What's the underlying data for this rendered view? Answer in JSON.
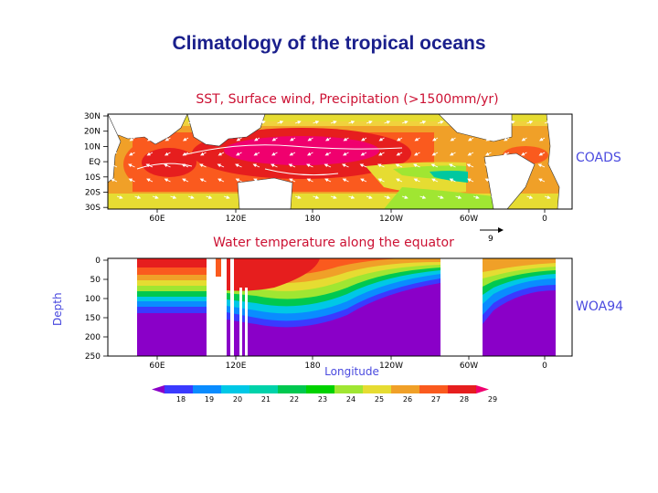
{
  "page": {
    "title": "Climatology of the tropical oceans"
  },
  "chart_data": [
    {
      "type": "heatmap",
      "title": "SST, Surface wind, Precipitation (>1500mm/yr)",
      "source_label": "COADS",
      "x_ticks": [
        "60E",
        "120E",
        "180",
        "120W",
        "60W",
        "0"
      ],
      "y_ticks": [
        "30N",
        "20N",
        "10N",
        "EQ",
        "10S",
        "20S",
        "30S"
      ],
      "overlay": "surface wind vectors and precipitation contours",
      "wind_reference_label": "9"
    },
    {
      "type": "heatmap",
      "title": "Water temperature along the equator",
      "source_label": "WOA94",
      "xlabel": "Longitude",
      "ylabel": "Depth",
      "x_ticks": [
        "60E",
        "120E",
        "180",
        "120W",
        "60W",
        "0"
      ],
      "y_ticks": [
        "0",
        "50",
        "100",
        "150",
        "200",
        "250"
      ],
      "ylim": [
        0,
        250
      ]
    }
  ],
  "colorbar": {
    "labels": [
      "18",
      "19",
      "20",
      "21",
      "22",
      "23",
      "24",
      "25",
      "26",
      "27",
      "28",
      "29"
    ],
    "colors": [
      "#8a00c8",
      "#3a3aff",
      "#0a8cff",
      "#00c8e6",
      "#00d2aa",
      "#00c850",
      "#00d200",
      "#a0e632",
      "#e6dc32",
      "#f0a028",
      "#fa5a1e",
      "#e61e1e",
      "#f0006e"
    ]
  }
}
